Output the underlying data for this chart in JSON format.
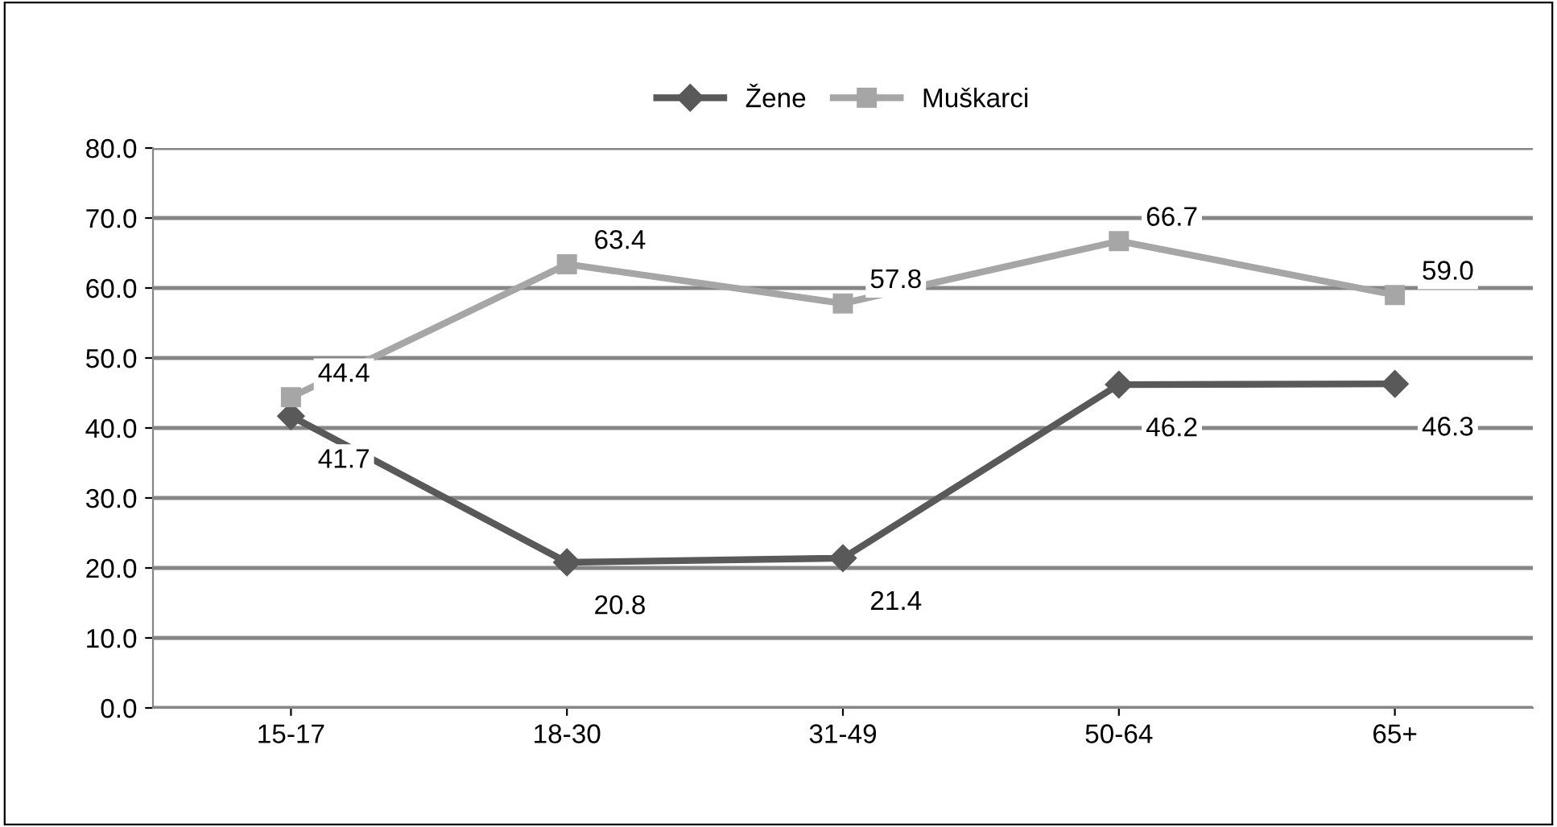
{
  "chart_data": {
    "type": "line",
    "categories": [
      "15-17",
      "18-30",
      "31-49",
      "50-64",
      "65+"
    ],
    "series": [
      {
        "name": "Žene",
        "color": "#595959",
        "marker": "diamond",
        "values": [
          41.7,
          20.8,
          21.4,
          46.2,
          46.3
        ],
        "value_labels": [
          "41.7",
          "20.8",
          "21.4",
          "46.2",
          "46.3"
        ]
      },
      {
        "name": "Muškarci",
        "color": "#a6a6a6",
        "marker": "square",
        "values": [
          44.4,
          63.4,
          57.8,
          66.7,
          59.0
        ],
        "value_labels": [
          "44.4",
          "63.4",
          "57.8",
          "66.7",
          "59.0"
        ]
      }
    ],
    "ylim": [
      0,
      80
    ],
    "yticks": [
      {
        "value": 0,
        "label": "0.0"
      },
      {
        "value": 10,
        "label": "10.0"
      },
      {
        "value": 20,
        "label": "20.0"
      },
      {
        "value": 30,
        "label": "30.0"
      },
      {
        "value": 40,
        "label": "40.0"
      },
      {
        "value": 50,
        "label": "50.0"
      },
      {
        "value": 60,
        "label": "60.0"
      },
      {
        "value": 70,
        "label": "70.0"
      },
      {
        "value": 80,
        "label": "80.0"
      }
    ],
    "grid": "y",
    "legend": "top",
    "line_style": "solid"
  }
}
